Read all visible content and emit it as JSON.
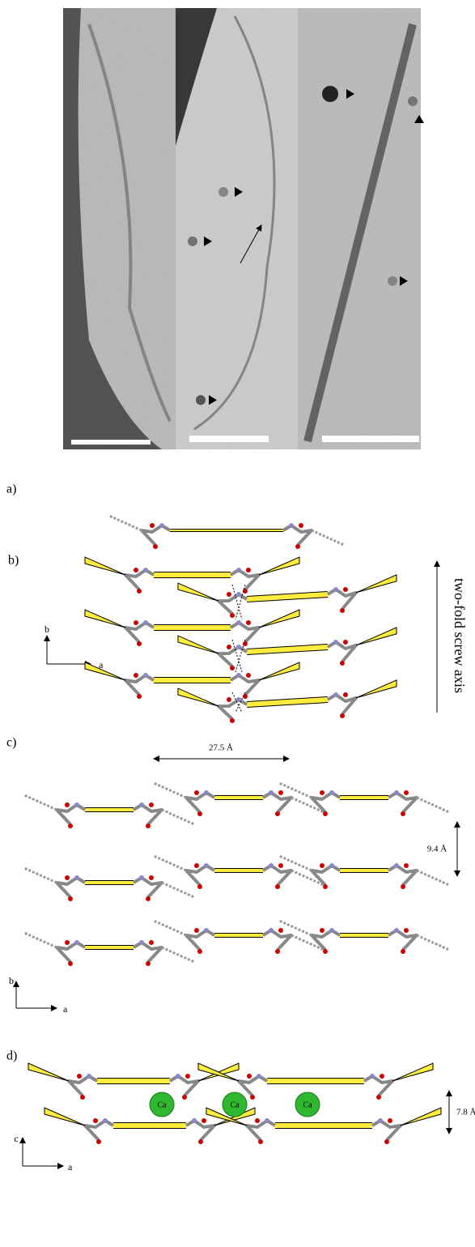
{
  "panels": [
    {
      "label": "a)"
    },
    {
      "label": "b)",
      "axis_note": "two-fold screw axis",
      "axes": [
        "b",
        "a"
      ]
    },
    {
      "label": "c)",
      "distances": [
        "27.5 Å",
        "9.4 Å"
      ],
      "axes": [
        "b",
        "a"
      ]
    },
    {
      "label": "d)",
      "distances": [
        "7.8 Å"
      ],
      "ions": [
        "Ca",
        "Ca",
        "Ca"
      ],
      "axes": [
        "c",
        "a"
      ]
    }
  ]
}
